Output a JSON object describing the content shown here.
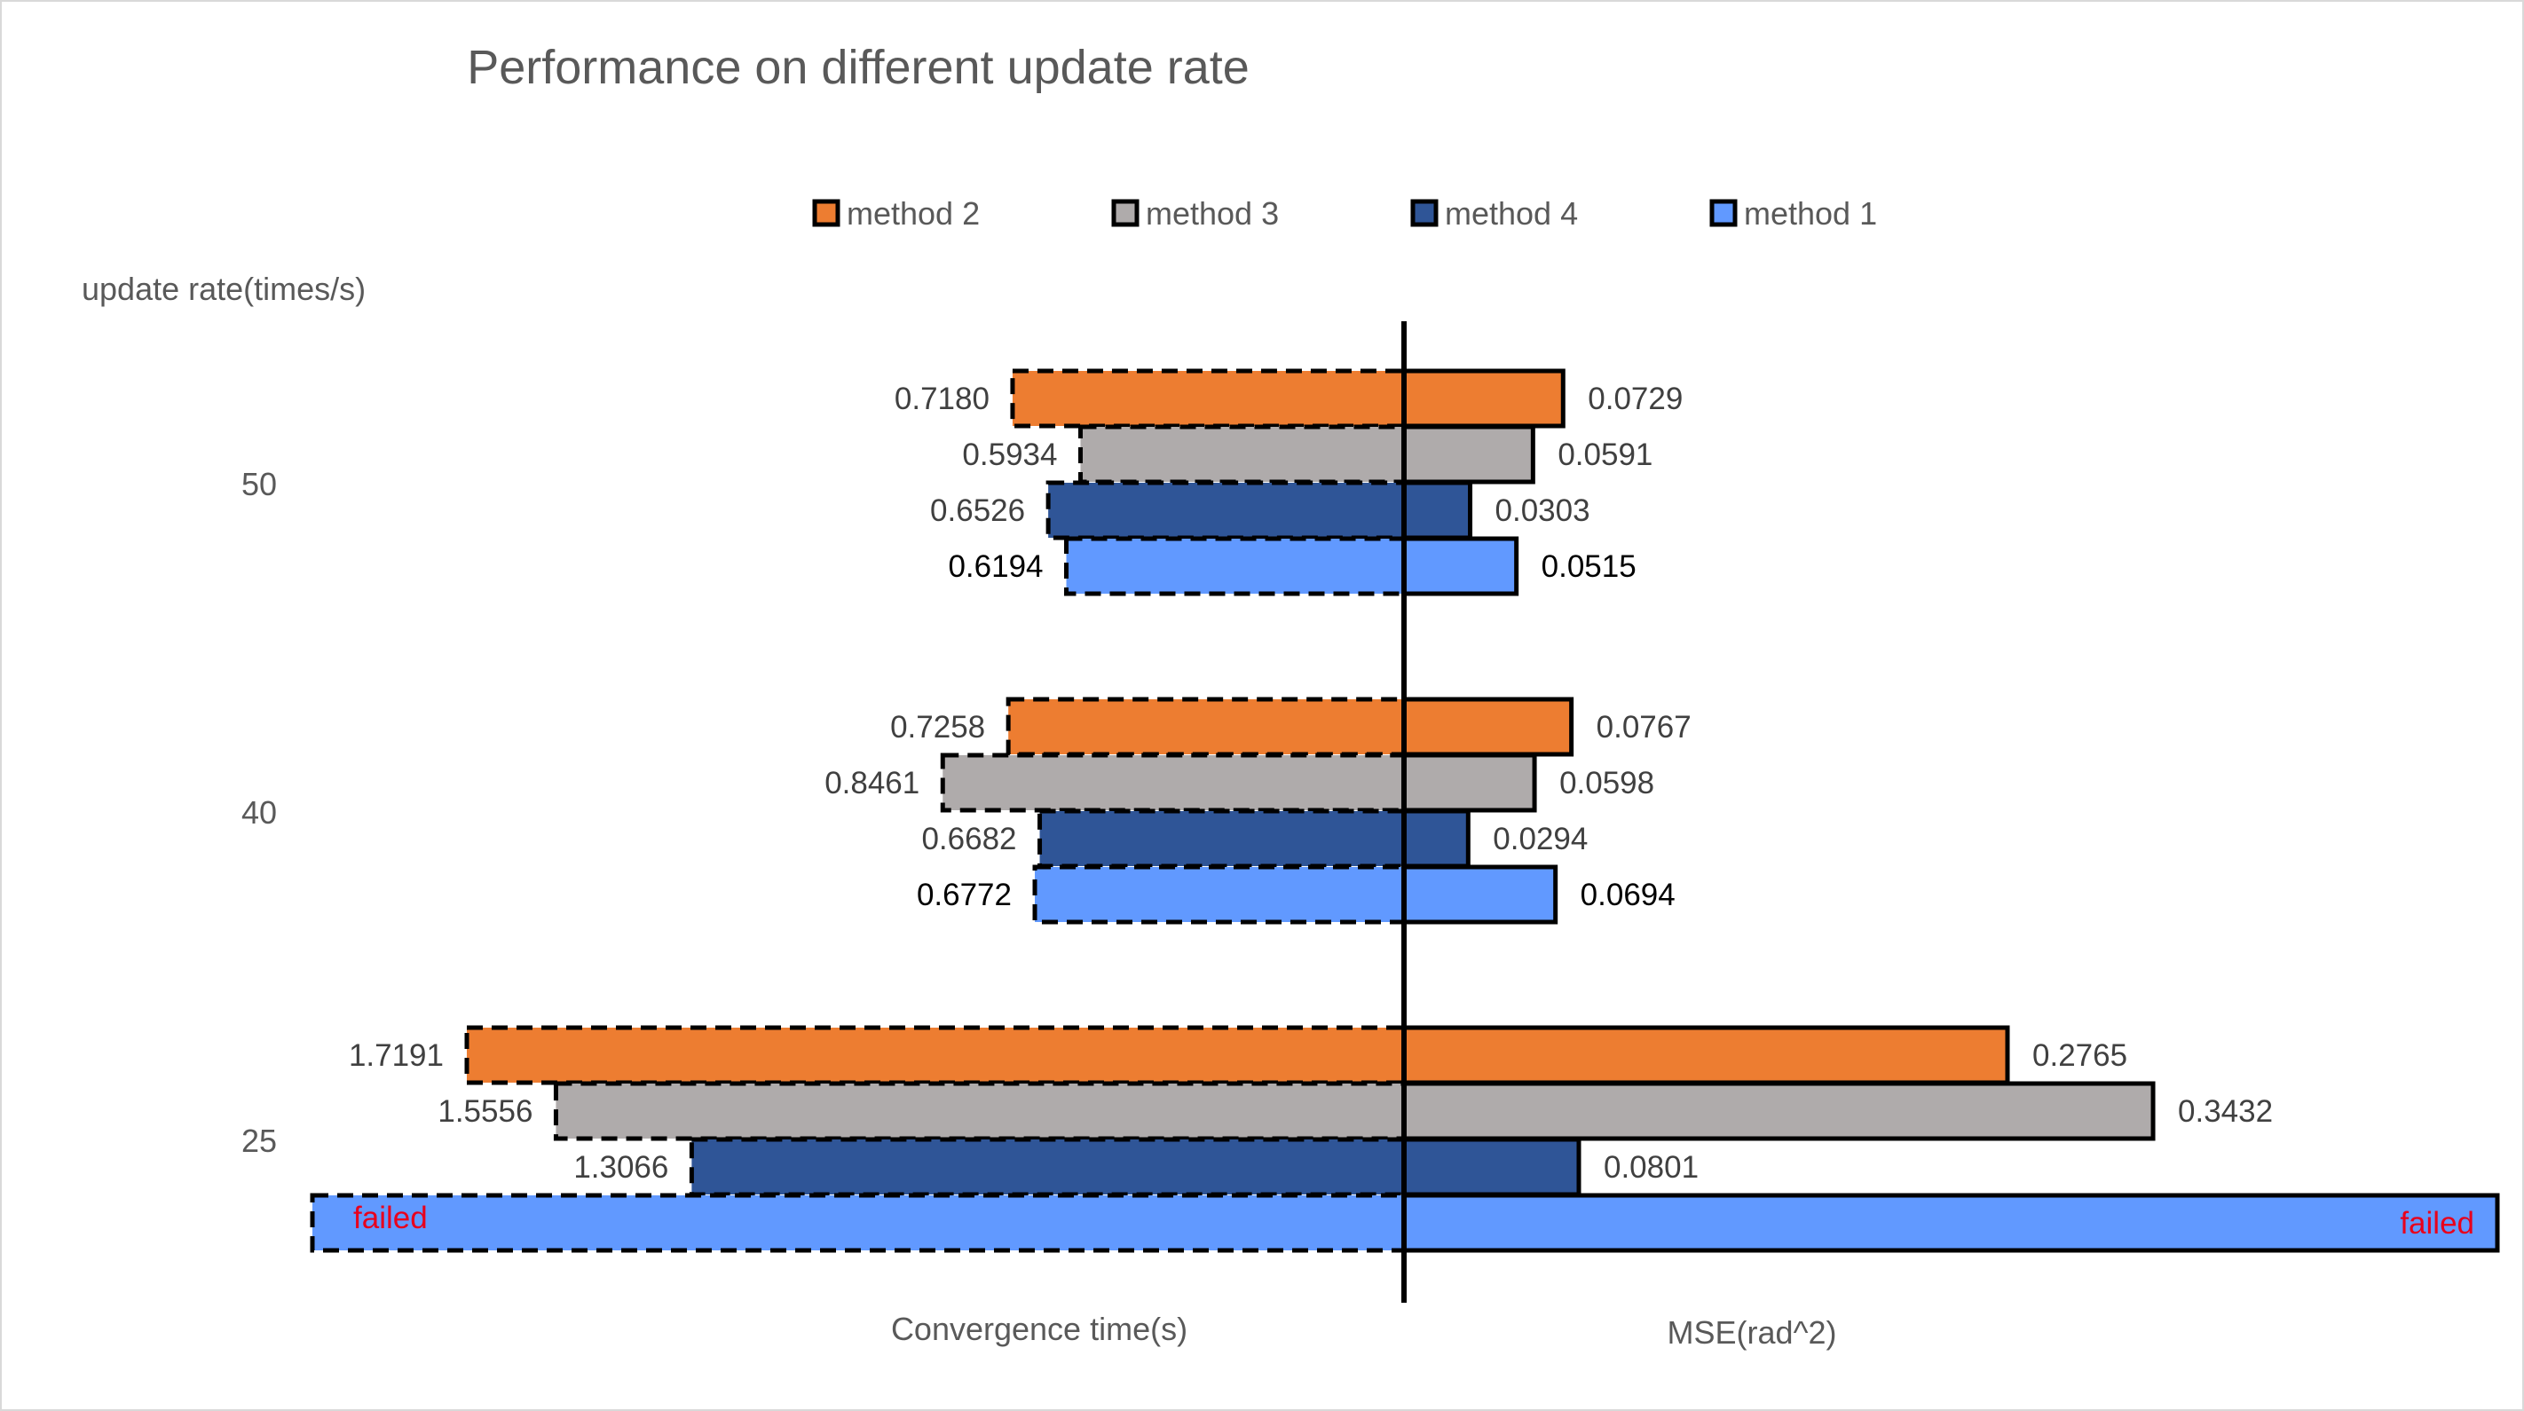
{
  "chart_data": {
    "type": "bar",
    "orientation": "horizontal-diverging",
    "title": "Performance on different update rate",
    "y_axis_title": "update rate(times/s)",
    "left_axis_label": "Convergence time(s)",
    "right_axis_label": "MSE(rad^2)",
    "legend_position": "top",
    "legend": [
      "method 2",
      "method 3",
      "method 4",
      "method 1"
    ],
    "categories": [
      "50",
      "40",
      "25"
    ],
    "series": [
      {
        "name": "method 2",
        "color": "#ed7d31",
        "convergence_time": [
          0.718,
          0.7258,
          1.7191
        ],
        "convergence_labels": [
          "0.7180",
          "0.7258",
          "1.7191"
        ],
        "mse": [
          0.0729,
          0.0767,
          0.2765
        ],
        "mse_labels": [
          "0.0729",
          "0.0767",
          "0.2765"
        ]
      },
      {
        "name": "method 3",
        "color": "#afabab",
        "convergence_time": [
          0.5934,
          0.8461,
          1.5556
        ],
        "convergence_labels": [
          "0.5934",
          "0.8461",
          "1.5556"
        ],
        "mse": [
          0.0591,
          0.0598,
          0.3432
        ],
        "mse_labels": [
          "0.0591",
          "0.0598",
          "0.3432"
        ]
      },
      {
        "name": "method 4",
        "color": "#2f5597",
        "convergence_time": [
          0.6526,
          0.6682,
          1.3066
        ],
        "convergence_labels": [
          "0.6526",
          "0.6682",
          "1.3066"
        ],
        "mse": [
          0.0303,
          0.0294,
          0.0801
        ],
        "mse_labels": [
          "0.0303",
          "0.0294",
          "0.0801"
        ]
      },
      {
        "name": "method 1",
        "color": "#6199ff",
        "convergence_time": [
          0.6194,
          0.6772,
          null
        ],
        "convergence_labels": [
          "0.6194",
          "0.6772",
          "failed"
        ],
        "mse": [
          0.0515,
          0.0694,
          null
        ],
        "mse_labels": [
          "0.0515",
          "0.0694",
          "failed"
        ]
      }
    ],
    "left_xlim": [
      0,
      2.0
    ],
    "right_xlim": [
      0,
      0.5
    ],
    "grid": false
  }
}
